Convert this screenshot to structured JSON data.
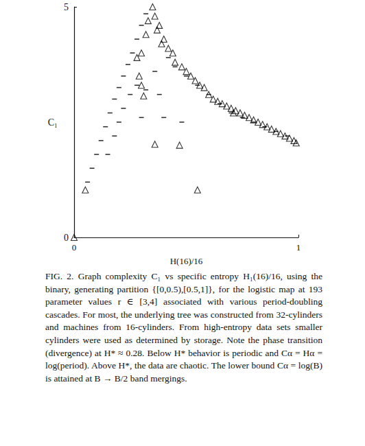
{
  "chart_data": {
    "type": "scatter",
    "xlabel": "H(16)/16",
    "ylabel": "C₁",
    "caption": "FIG. 2. Graph complexity C₁ vs specific entropy H₁(16)/16, using the binary, generating partition {[0,0.5),[0.5,1]}, for the logistic map at 193 parameter values r ∈ [3,4] associated with various period-doubling cascades. For most, the underlying tree was constructed from 32-cylinders and machines from 16-cylinders. From high-entropy data sets smaller cylinders were used as determined by storage. Note the phase transition (divergence) at H* ≈ 0.28. Below H* behavior is periodic and Cα = Hα = log(period). Above H*, the data are chaotic. The lower bound Cα = log(B) is attained at B → B/2 band mergings.",
    "xlim": [
      0,
      1
    ],
    "ylim": [
      0,
      5
    ],
    "xticks": [
      0,
      1
    ],
    "yticks": [
      0,
      5
    ],
    "grid": false,
    "series": [
      {
        "marker": "triangle",
        "color": "#000000",
        "x": [
          0,
          0.05,
          0.28,
          0.29,
          0.3,
          0.3,
          0.31,
          0.32,
          0.33,
          0.35,
          0.36,
          0.37,
          0.38,
          0.36,
          0.39,
          0.4,
          0.42,
          0.44,
          0.45,
          0.47,
          0.48,
          0.5,
          0.52,
          0.54,
          0.55,
          0.56,
          0.58,
          0.6,
          0.62,
          0.64,
          0.66,
          0.68,
          0.7,
          0.71,
          0.72,
          0.74,
          0.76,
          0.78,
          0.8,
          0.82,
          0.84,
          0.86,
          0.88,
          0.9,
          0.92,
          0.94,
          0.96,
          0.98,
          0.99
        ],
        "values": [
          0,
          1.03,
          3.9,
          3.5,
          3.3,
          4.0,
          3.07,
          4.4,
          4.7,
          5.0,
          4.8,
          4.5,
          4.6,
          2.02,
          4.2,
          4.3,
          4.1,
          4.0,
          3.8,
          2.0,
          3.7,
          3.6,
          3.5,
          3.4,
          1.03,
          3.3,
          3.25,
          3.1,
          3.0,
          2.95,
          2.9,
          2.85,
          2.8,
          2.7,
          2.75,
          2.7,
          2.65,
          2.6,
          2.55,
          2.5,
          2.45,
          2.4,
          2.35,
          2.3,
          2.25,
          2.2,
          2.15,
          2.1,
          2.05
        ]
      },
      {
        "marker": "dash",
        "color": "#000000",
        "x": [
          0.06,
          0.08,
          0.1,
          0.12,
          0.14,
          0.16,
          0.18,
          0.2,
          0.22,
          0.24,
          0.26,
          0.28,
          0.3,
          0.32,
          0.15,
          0.18,
          0.2,
          0.22,
          0.25,
          0.28,
          0.3,
          0.32,
          0.36,
          0.38,
          0.4,
          0.42,
          0.45,
          0.48,
          0.5,
          0.55,
          0.6,
          0.65,
          0.7,
          0.75,
          0.8,
          0.85,
          0.9,
          0.95
        ],
        "values": [
          1.2,
          1.5,
          1.8,
          2.1,
          2.4,
          2.7,
          3.0,
          3.25,
          3.5,
          3.75,
          4.0,
          4.3,
          4.6,
          4.85,
          1.8,
          2.2,
          2.5,
          2.8,
          3.1,
          3.3,
          2.6,
          3.2,
          3.6,
          3.1,
          2.6,
          3.9,
          3.7,
          2.5,
          3.5,
          3.3,
          3.1,
          2.9,
          2.7,
          2.6,
          2.5,
          2.4,
          2.3,
          2.2
        ]
      }
    ]
  }
}
